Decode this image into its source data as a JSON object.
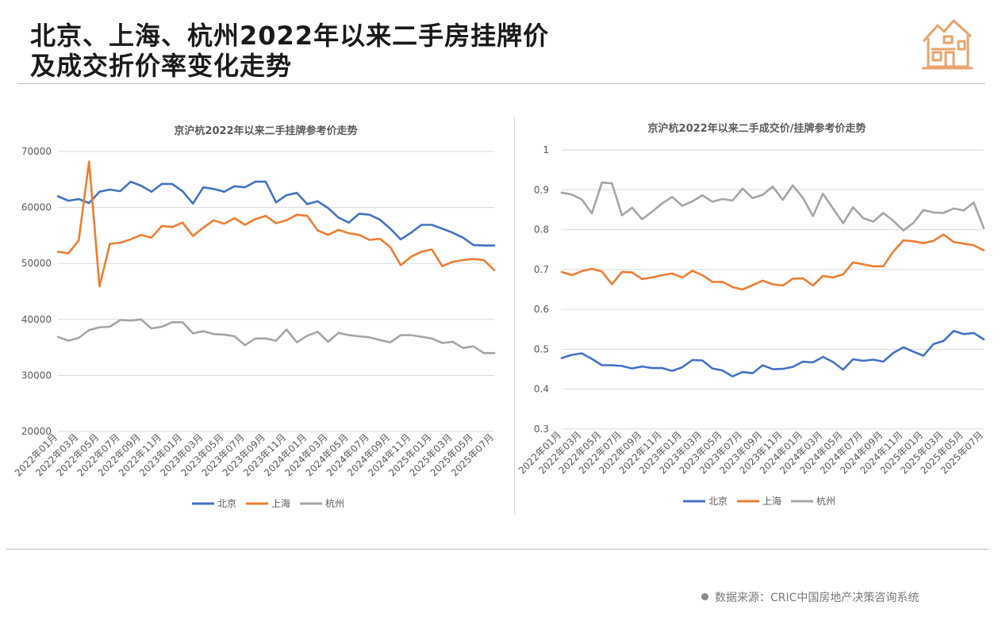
{
  "header": {
    "title_line1": "北京、上海、杭州2022年以来二手房挂牌价",
    "title_line2": "及成交折价率变化走势"
  },
  "footer": {
    "source": "数据来源：CRIC中国房地产决策咨询系统"
  },
  "colors": {
    "beijing": "#4472c4",
    "shanghai": "#ed7d31",
    "hangzhou": "#a5a5a5",
    "logo": "#e8a36e"
  },
  "chart_data": [
    {
      "type": "line",
      "title": "京沪杭2022年以来二手挂牌参考价走势",
      "xlabel": "",
      "ylabel": "",
      "ylim": [
        20000,
        70000
      ],
      "yticks": [
        "70000",
        "60000",
        "50000",
        "40000",
        "30000",
        "20000"
      ],
      "x": [
        "2022年01月",
        "2022年02月",
        "2022年03月",
        "2022年04月",
        "2022年05月",
        "2022年06月",
        "2022年07月",
        "2022年08月",
        "2022年09月",
        "2022年10月",
        "2022年11月",
        "2022年12月",
        "2023年01月",
        "2023年02月",
        "2023年03月",
        "2023年04月",
        "2023年05月",
        "2023年06月",
        "2023年07月",
        "2023年08月",
        "2023年09月",
        "2023年10月",
        "2023年11月",
        "2023年12月",
        "2024年01月",
        "2024年02月",
        "2024年03月",
        "2024年04月",
        "2024年05月",
        "2024年06月",
        "2024年07月",
        "2024年08月",
        "2024年09月",
        "2024年10月",
        "2024年11月",
        "2024年12月",
        "2025年01月",
        "2025年02月",
        "2025年03月",
        "2025年04月",
        "2025年05月",
        "2025年06月",
        "2025年07月"
      ],
      "xtick_labels": [
        "2022年01月",
        "2022年03月",
        "2022年05月",
        "2022年07月",
        "2022年09月",
        "2022年11月",
        "2023年01月",
        "2023年03月",
        "2023年05月",
        "2023年07月",
        "2023年09月",
        "2023年11月",
        "2024年01月",
        "2024年03月",
        "2024年05月",
        "2024年07月",
        "2024年09月",
        "2024年11月",
        "2025年01月",
        "2025年03月",
        "2025年05月",
        "2025年07月"
      ],
      "series": [
        {
          "name": "北京",
          "color": "#4472c4",
          "values": [
            62000,
            61200,
            61500,
            60800,
            62800,
            63200,
            62900,
            64600,
            63900,
            62800,
            64200,
            64200,
            62900,
            60700,
            63600,
            63300,
            62800,
            63800,
            63600,
            64600,
            64600,
            60900,
            62200,
            62600,
            60600,
            61100,
            59900,
            58200,
            57300,
            58900,
            58700,
            57800,
            56200,
            54300,
            55500,
            56900,
            56900,
            56200,
            55500,
            54600,
            53300,
            53200,
            53200
          ]
        },
        {
          "name": "上海",
          "color": "#ed7d31",
          "values": [
            52100,
            51800,
            54100,
            68200,
            45900,
            53500,
            53700,
            54300,
            55100,
            54600,
            56700,
            56500,
            57300,
            54900,
            56400,
            57700,
            57100,
            58100,
            56900,
            57900,
            58500,
            57200,
            57700,
            58700,
            58500,
            55900,
            55100,
            56000,
            55400,
            55100,
            54200,
            54400,
            52900,
            49700,
            51200,
            52100,
            52500,
            49500,
            50300,
            50600,
            50800,
            50600,
            48800
          ]
        },
        {
          "name": "杭州",
          "color": "#a5a5a5",
          "values": [
            36900,
            36200,
            36700,
            38100,
            38600,
            38700,
            39900,
            39800,
            40000,
            38400,
            38700,
            39500,
            39500,
            37500,
            37900,
            37400,
            37300,
            37000,
            35400,
            36600,
            36600,
            36200,
            38200,
            35900,
            37100,
            37800,
            36000,
            37600,
            37200,
            37000,
            36800,
            36300,
            35900,
            37200,
            37200,
            36900,
            36600,
            35800,
            36000,
            34900,
            35200,
            34000,
            34000
          ]
        }
      ],
      "legend": [
        "北京",
        "上海",
        "杭州"
      ],
      "legend_position": "bottom"
    },
    {
      "type": "line",
      "title": "京沪杭2022年以来二手成交价/挂牌参考价走势",
      "xlabel": "",
      "ylabel": "",
      "ylim": [
        0.3,
        1.0
      ],
      "yticks": [
        "1",
        "0.9",
        "0.8",
        "0.7",
        "0.6",
        "0.5",
        "0.4",
        "0.3"
      ],
      "x": [
        "2022年01月",
        "2022年02月",
        "2022年03月",
        "2022年04月",
        "2022年05月",
        "2022年06月",
        "2022年07月",
        "2022年08月",
        "2022年09月",
        "2022年10月",
        "2022年11月",
        "2022年12月",
        "2023年01月",
        "2023年02月",
        "2023年03月",
        "2023年04月",
        "2023年05月",
        "2023年06月",
        "2023年07月",
        "2023年08月",
        "2023年09月",
        "2023年10月",
        "2023年11月",
        "2023年12月",
        "2024年01月",
        "2024年02月",
        "2024年03月",
        "2024年04月",
        "2024年05月",
        "2024年06月",
        "2024年07月",
        "2024年08月",
        "2024年09月",
        "2024年10月",
        "2024年11月",
        "2024年12月",
        "2025年01月",
        "2025年02月",
        "2025年03月",
        "2025年04月",
        "2025年05月",
        "2025年06月",
        "2025年07月"
      ],
      "xtick_labels": [
        "2022年01月",
        "2022年03月",
        "2022年05月",
        "2022年07月",
        "2022年09月",
        "2022年11月",
        "2023年01月",
        "2023年03月",
        "2023年05月",
        "2023年07月",
        "2023年09月",
        "2023年11月",
        "2024年01月",
        "2024年03月",
        "2024年05月",
        "2024年07月",
        "2024年09月",
        "2024年11月",
        "2025年01月",
        "2025年03月",
        "2025年05月",
        "2025年07月"
      ],
      "series": [
        {
          "name": "北京",
          "color": "#4472c4",
          "values": [
            0.478,
            0.486,
            0.49,
            0.476,
            0.46,
            0.46,
            0.458,
            0.452,
            0.457,
            0.453,
            0.453,
            0.446,
            0.455,
            0.473,
            0.472,
            0.452,
            0.447,
            0.432,
            0.443,
            0.44,
            0.46,
            0.45,
            0.451,
            0.456,
            0.469,
            0.467,
            0.481,
            0.468,
            0.449,
            0.475,
            0.471,
            0.474,
            0.469,
            0.491,
            0.505,
            0.494,
            0.484,
            0.513,
            0.521,
            0.546,
            0.538,
            0.541,
            0.525
          ]
        },
        {
          "name": "上海",
          "color": "#ed7d31",
          "values": [
            0.694,
            0.686,
            0.696,
            0.702,
            0.695,
            0.663,
            0.694,
            0.693,
            0.676,
            0.68,
            0.686,
            0.69,
            0.68,
            0.697,
            0.686,
            0.669,
            0.669,
            0.656,
            0.65,
            0.661,
            0.672,
            0.663,
            0.66,
            0.677,
            0.678,
            0.66,
            0.684,
            0.68,
            0.688,
            0.718,
            0.713,
            0.708,
            0.708,
            0.745,
            0.773,
            0.771,
            0.766,
            0.772,
            0.788,
            0.769,
            0.765,
            0.761,
            0.748
          ]
        },
        {
          "name": "杭州",
          "color": "#a5a5a5",
          "values": [
            0.893,
            0.888,
            0.876,
            0.841,
            0.918,
            0.916,
            0.836,
            0.855,
            0.826,
            0.845,
            0.866,
            0.882,
            0.86,
            0.871,
            0.886,
            0.87,
            0.877,
            0.873,
            0.903,
            0.879,
            0.887,
            0.908,
            0.875,
            0.911,
            0.88,
            0.834,
            0.89,
            0.853,
            0.816,
            0.856,
            0.829,
            0.82,
            0.842,
            0.822,
            0.798,
            0.817,
            0.849,
            0.843,
            0.842,
            0.853,
            0.848,
            0.868,
            0.804
          ]
        }
      ],
      "legend": [
        "北京",
        "上海",
        "杭州"
      ],
      "legend_position": "bottom"
    }
  ]
}
